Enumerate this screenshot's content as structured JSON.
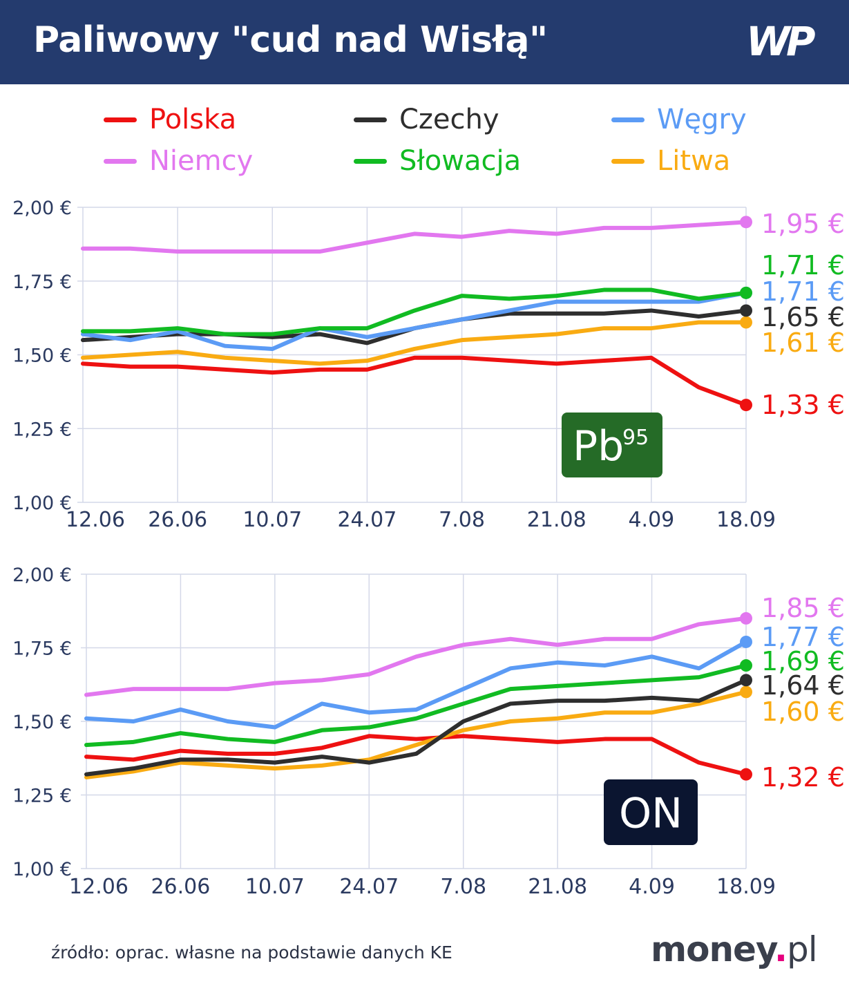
{
  "header": {
    "title": "Paliwowy \"cud nad Wisłą\"",
    "logo_text": "WP"
  },
  "legend": [
    {
      "name": "Polska",
      "color": "#ee1111"
    },
    {
      "name": "Czechy",
      "color": "#2e2e2e"
    },
    {
      "name": "Węgry",
      "color": "#5b9bf5"
    },
    {
      "name": "Niemcy",
      "color": "#e277ef"
    },
    {
      "name": "Słowacja",
      "color": "#11bb22"
    },
    {
      "name": "Litwa",
      "color": "#f9ab12"
    }
  ],
  "chart_data": [
    {
      "type": "line",
      "badge": {
        "text": "Pb",
        "sup": "95",
        "color": "#256b27"
      },
      "x": [
        "12.06",
        "19.06",
        "26.06",
        "3.07",
        "10.07",
        "17.07",
        "24.07",
        "31.07",
        "7.08",
        "14.08",
        "21.08",
        "28.08",
        "4.09",
        "11.09",
        "18.09"
      ],
      "x_tick_labels": [
        "12.06",
        "26.06",
        "10.07",
        "24.07",
        "7.08",
        "21.08",
        "4.09",
        "18.09"
      ],
      "y_tick_labels": [
        "2,00 €",
        "1,75 €",
        "1,50 €",
        "1,25 €",
        "1,00 €"
      ],
      "ylim": [
        1.0,
        2.0
      ],
      "grid": true,
      "series": [
        {
          "name": "Niemcy",
          "color": "#e277ef",
          "end_label": "1,95 €",
          "values": [
            1.86,
            1.86,
            1.85,
            1.85,
            1.85,
            1.85,
            1.88,
            1.91,
            1.9,
            1.92,
            1.91,
            1.93,
            1.93,
            1.94,
            1.95
          ]
        },
        {
          "name": "Słowacja",
          "color": "#11bb22",
          "end_label": "1,71 €",
          "values": [
            1.58,
            1.58,
            1.59,
            1.57,
            1.57,
            1.59,
            1.59,
            1.65,
            1.7,
            1.69,
            1.7,
            1.72,
            1.72,
            1.69,
            1.71
          ]
        },
        {
          "name": "Węgry",
          "color": "#5b9bf5",
          "end_label": "1,71 €",
          "values": [
            1.57,
            1.55,
            1.58,
            1.53,
            1.52,
            1.59,
            1.56,
            1.59,
            1.62,
            1.65,
            1.68,
            1.68,
            1.68,
            1.68,
            1.71
          ]
        },
        {
          "name": "Czechy",
          "color": "#2e2e2e",
          "end_label": "1,65 €",
          "values": [
            1.55,
            1.56,
            1.57,
            1.57,
            1.56,
            1.57,
            1.54,
            1.59,
            1.62,
            1.64,
            1.64,
            1.64,
            1.65,
            1.63,
            1.65
          ]
        },
        {
          "name": "Litwa",
          "color": "#f9ab12",
          "end_label": "1,61 €",
          "values": [
            1.49,
            1.5,
            1.51,
            1.49,
            1.48,
            1.47,
            1.48,
            1.52,
            1.55,
            1.56,
            1.57,
            1.59,
            1.59,
            1.61,
            1.61
          ]
        },
        {
          "name": "Polska",
          "color": "#ee1111",
          "end_label": "1,33 €",
          "values": [
            1.47,
            1.46,
            1.46,
            1.45,
            1.44,
            1.45,
            1.45,
            1.49,
            1.49,
            1.48,
            1.47,
            1.48,
            1.49,
            1.39,
            1.33
          ]
        }
      ]
    },
    {
      "type": "line",
      "badge": {
        "text": "ON",
        "sup": "",
        "color": "#0b1530"
      },
      "x": [
        "12.06",
        "19.06",
        "26.06",
        "3.07",
        "10.07",
        "17.07",
        "24.07",
        "31.07",
        "7.08",
        "14.08",
        "21.08",
        "28.08",
        "4.09",
        "11.09",
        "18.09"
      ],
      "x_tick_labels": [
        "12.06",
        "26.06",
        "10.07",
        "24.07",
        "7.08",
        "21.08",
        "4.09",
        "18.09"
      ],
      "y_tick_labels": [
        "2,00 €",
        "1,75 €",
        "1,50 €",
        "1,25 €",
        "1,00 €"
      ],
      "ylim": [
        1.0,
        2.0
      ],
      "grid": true,
      "series": [
        {
          "name": "Niemcy",
          "color": "#e277ef",
          "end_label": "1,85 €",
          "values": [
            1.59,
            1.61,
            1.61,
            1.61,
            1.63,
            1.64,
            1.66,
            1.72,
            1.76,
            1.78,
            1.76,
            1.78,
            1.78,
            1.83,
            1.85
          ]
        },
        {
          "name": "Węgry",
          "color": "#5b9bf5",
          "end_label": "1,77 €",
          "values": [
            1.51,
            1.5,
            1.54,
            1.5,
            1.48,
            1.56,
            1.53,
            1.54,
            1.61,
            1.68,
            1.7,
            1.69,
            1.72,
            1.68,
            1.77
          ]
        },
        {
          "name": "Słowacja",
          "color": "#11bb22",
          "end_label": "1,69 €",
          "values": [
            1.42,
            1.43,
            1.46,
            1.44,
            1.43,
            1.47,
            1.48,
            1.51,
            1.56,
            1.61,
            1.62,
            1.63,
            1.64,
            1.65,
            1.69
          ]
        },
        {
          "name": "Czechy",
          "color": "#2e2e2e",
          "end_label": "1,64 €",
          "values": [
            1.32,
            1.34,
            1.37,
            1.37,
            1.36,
            1.38,
            1.36,
            1.39,
            1.5,
            1.56,
            1.57,
            1.57,
            1.58,
            1.57,
            1.64
          ]
        },
        {
          "name": "Litwa",
          "color": "#f9ab12",
          "end_label": "1,60 €",
          "values": [
            1.31,
            1.33,
            1.36,
            1.35,
            1.34,
            1.35,
            1.37,
            1.42,
            1.47,
            1.5,
            1.51,
            1.53,
            1.53,
            1.56,
            1.6
          ]
        },
        {
          "name": "Polska",
          "color": "#ee1111",
          "end_label": "1,32 €",
          "values": [
            1.38,
            1.37,
            1.4,
            1.39,
            1.39,
            1.41,
            1.45,
            1.44,
            1.45,
            1.44,
            1.43,
            1.44,
            1.44,
            1.36,
            1.32
          ]
        }
      ]
    }
  ],
  "footer": {
    "source": "źródło: oprac. własne na podstawie danych KE",
    "logo_main": "money",
    "logo_dot": ".",
    "logo_tld": "pl"
  }
}
